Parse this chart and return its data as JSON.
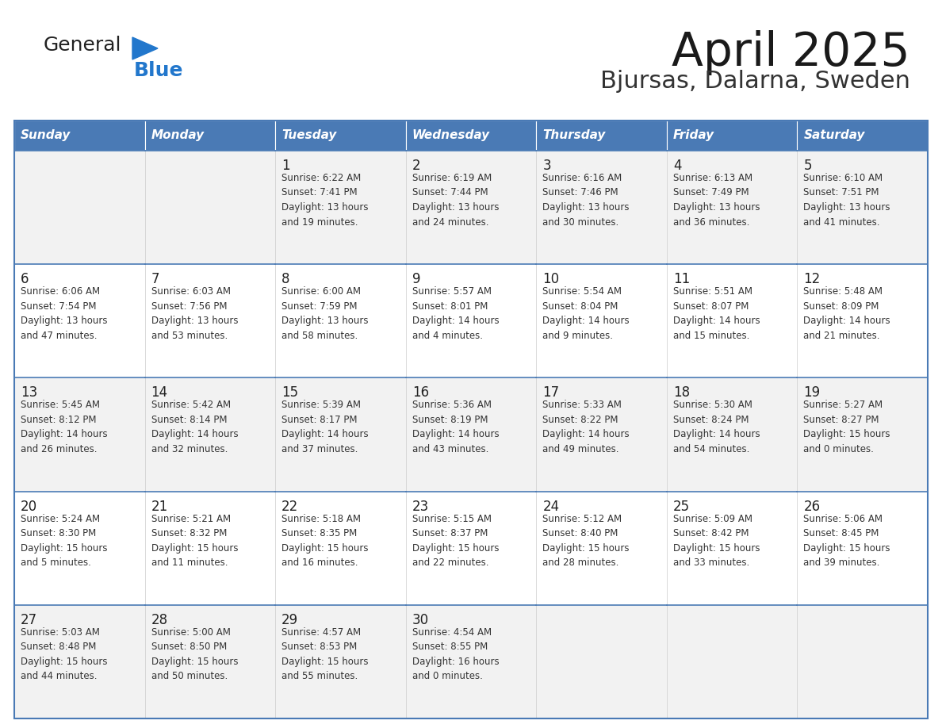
{
  "title": "April 2025",
  "subtitle": "Bjursas, Dalarna, Sweden",
  "days_of_week": [
    "Sunday",
    "Monday",
    "Tuesday",
    "Wednesday",
    "Thursday",
    "Friday",
    "Saturday"
  ],
  "header_bg": "#4a7ab5",
  "header_text": "#ffffff",
  "row_bg_odd": "#f2f2f2",
  "row_bg_even": "#ffffff",
  "border_color": "#4a7ab5",
  "cell_text_color": "#333333",
  "day_num_color": "#222222",
  "logo_general_color": "#222222",
  "logo_blue_color": "#2277cc",
  "logo_triangle_color": "#2277cc",
  "calendar": [
    [
      {
        "day": "",
        "info": ""
      },
      {
        "day": "",
        "info": ""
      },
      {
        "day": "1",
        "info": "Sunrise: 6:22 AM\nSunset: 7:41 PM\nDaylight: 13 hours\nand 19 minutes."
      },
      {
        "day": "2",
        "info": "Sunrise: 6:19 AM\nSunset: 7:44 PM\nDaylight: 13 hours\nand 24 minutes."
      },
      {
        "day": "3",
        "info": "Sunrise: 6:16 AM\nSunset: 7:46 PM\nDaylight: 13 hours\nand 30 minutes."
      },
      {
        "day": "4",
        "info": "Sunrise: 6:13 AM\nSunset: 7:49 PM\nDaylight: 13 hours\nand 36 minutes."
      },
      {
        "day": "5",
        "info": "Sunrise: 6:10 AM\nSunset: 7:51 PM\nDaylight: 13 hours\nand 41 minutes."
      }
    ],
    [
      {
        "day": "6",
        "info": "Sunrise: 6:06 AM\nSunset: 7:54 PM\nDaylight: 13 hours\nand 47 minutes."
      },
      {
        "day": "7",
        "info": "Sunrise: 6:03 AM\nSunset: 7:56 PM\nDaylight: 13 hours\nand 53 minutes."
      },
      {
        "day": "8",
        "info": "Sunrise: 6:00 AM\nSunset: 7:59 PM\nDaylight: 13 hours\nand 58 minutes."
      },
      {
        "day": "9",
        "info": "Sunrise: 5:57 AM\nSunset: 8:01 PM\nDaylight: 14 hours\nand 4 minutes."
      },
      {
        "day": "10",
        "info": "Sunrise: 5:54 AM\nSunset: 8:04 PM\nDaylight: 14 hours\nand 9 minutes."
      },
      {
        "day": "11",
        "info": "Sunrise: 5:51 AM\nSunset: 8:07 PM\nDaylight: 14 hours\nand 15 minutes."
      },
      {
        "day": "12",
        "info": "Sunrise: 5:48 AM\nSunset: 8:09 PM\nDaylight: 14 hours\nand 21 minutes."
      }
    ],
    [
      {
        "day": "13",
        "info": "Sunrise: 5:45 AM\nSunset: 8:12 PM\nDaylight: 14 hours\nand 26 minutes."
      },
      {
        "day": "14",
        "info": "Sunrise: 5:42 AM\nSunset: 8:14 PM\nDaylight: 14 hours\nand 32 minutes."
      },
      {
        "day": "15",
        "info": "Sunrise: 5:39 AM\nSunset: 8:17 PM\nDaylight: 14 hours\nand 37 minutes."
      },
      {
        "day": "16",
        "info": "Sunrise: 5:36 AM\nSunset: 8:19 PM\nDaylight: 14 hours\nand 43 minutes."
      },
      {
        "day": "17",
        "info": "Sunrise: 5:33 AM\nSunset: 8:22 PM\nDaylight: 14 hours\nand 49 minutes."
      },
      {
        "day": "18",
        "info": "Sunrise: 5:30 AM\nSunset: 8:24 PM\nDaylight: 14 hours\nand 54 minutes."
      },
      {
        "day": "19",
        "info": "Sunrise: 5:27 AM\nSunset: 8:27 PM\nDaylight: 15 hours\nand 0 minutes."
      }
    ],
    [
      {
        "day": "20",
        "info": "Sunrise: 5:24 AM\nSunset: 8:30 PM\nDaylight: 15 hours\nand 5 minutes."
      },
      {
        "day": "21",
        "info": "Sunrise: 5:21 AM\nSunset: 8:32 PM\nDaylight: 15 hours\nand 11 minutes."
      },
      {
        "day": "22",
        "info": "Sunrise: 5:18 AM\nSunset: 8:35 PM\nDaylight: 15 hours\nand 16 minutes."
      },
      {
        "day": "23",
        "info": "Sunrise: 5:15 AM\nSunset: 8:37 PM\nDaylight: 15 hours\nand 22 minutes."
      },
      {
        "day": "24",
        "info": "Sunrise: 5:12 AM\nSunset: 8:40 PM\nDaylight: 15 hours\nand 28 minutes."
      },
      {
        "day": "25",
        "info": "Sunrise: 5:09 AM\nSunset: 8:42 PM\nDaylight: 15 hours\nand 33 minutes."
      },
      {
        "day": "26",
        "info": "Sunrise: 5:06 AM\nSunset: 8:45 PM\nDaylight: 15 hours\nand 39 minutes."
      }
    ],
    [
      {
        "day": "27",
        "info": "Sunrise: 5:03 AM\nSunset: 8:48 PM\nDaylight: 15 hours\nand 44 minutes."
      },
      {
        "day": "28",
        "info": "Sunrise: 5:00 AM\nSunset: 8:50 PM\nDaylight: 15 hours\nand 50 minutes."
      },
      {
        "day": "29",
        "info": "Sunrise: 4:57 AM\nSunset: 8:53 PM\nDaylight: 15 hours\nand 55 minutes."
      },
      {
        "day": "30",
        "info": "Sunrise: 4:54 AM\nSunset: 8:55 PM\nDaylight: 16 hours\nand 0 minutes."
      },
      {
        "day": "",
        "info": ""
      },
      {
        "day": "",
        "info": ""
      },
      {
        "day": "",
        "info": ""
      }
    ]
  ]
}
